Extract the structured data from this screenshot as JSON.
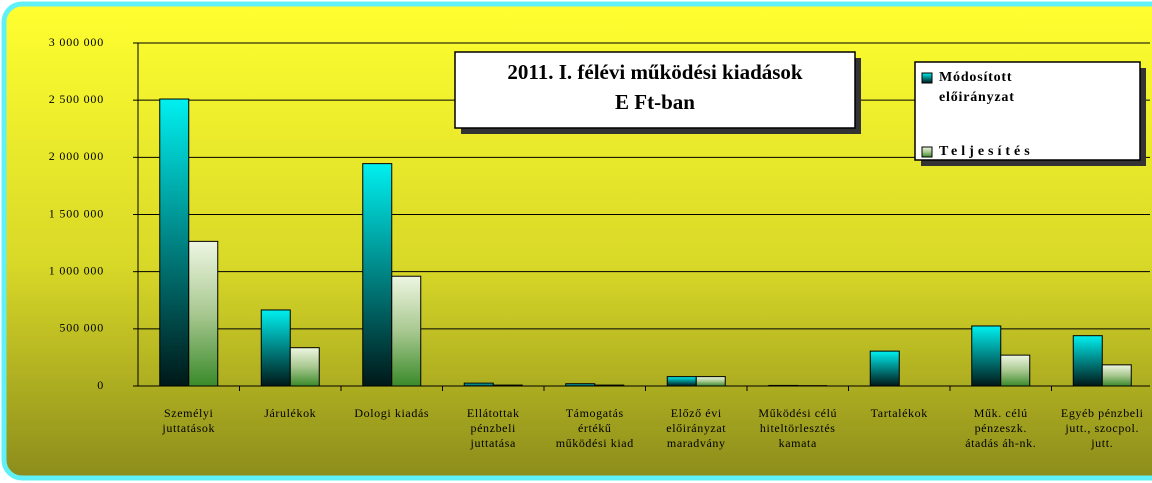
{
  "chart_data": {
    "type": "bar",
    "title": "2011. I. félévi működési kiadások",
    "subtitle": "E Ft-ban",
    "categories": [
      "Személyi\njuttatások",
      "Járulékok",
      "Dologi kiadás",
      "Ellátottak\npénzbeli\njuttatása",
      "Támogatás\nértékű\nműködési kiad",
      "Előző évi\nelőirányzat\nmaradvány",
      "Működési célú\nhiteltörlesztés\nkamata",
      "Tartalékok",
      "Műk. célú\npénzeszk.\nátadás áh-nk.",
      "Egyéb pénzbeli\njutt., szocpol.\njutt."
    ],
    "series": [
      {
        "name": "Módosított előirányzat",
        "color": "#00f0f0",
        "values": [
          2510000,
          665000,
          1945000,
          25000,
          20000,
          82000,
          5000,
          305000,
          525000,
          440000
        ]
      },
      {
        "name": "Teljesítés",
        "color": "#3a8a2a",
        "values": [
          1265000,
          335000,
          960000,
          8000,
          8000,
          82000,
          3000,
          0,
          270000,
          185000
        ]
      }
    ],
    "ylim": [
      0,
      3000000
    ],
    "yticks": [
      0,
      {
        "value": 500000,
        "label": "500 000"
      },
      {
        "value": 1000000,
        "label": "1 000 000"
      },
      {
        "value": 1500000,
        "label": "1 500 000"
      },
      {
        "value": 2000000,
        "label": "2 000 000"
      },
      {
        "value": 2500000,
        "label": "2 500 000"
      },
      {
        "value": 3000000,
        "label": "3 000 000"
      }
    ],
    "grid": true,
    "legend": "top-right"
  }
}
